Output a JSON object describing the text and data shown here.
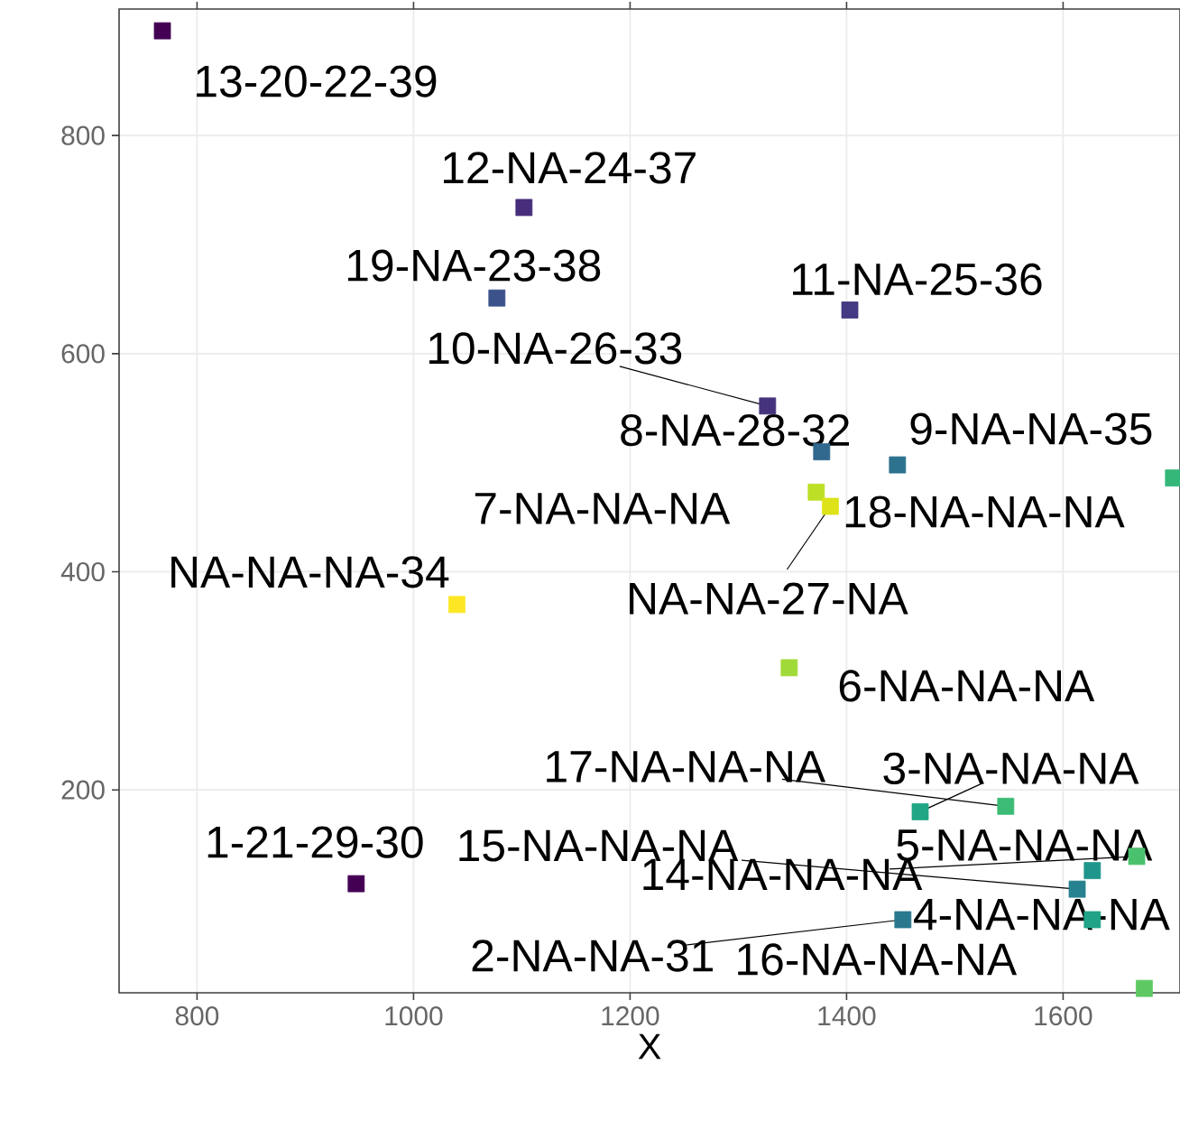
{
  "chart_data": {
    "type": "scatter",
    "xlabel": "X",
    "x": [
      768,
      1102,
      1077,
      1403,
      1327,
      1377,
      1447,
      1372,
      1385,
      1040,
      1347,
      1468,
      1547,
      1627,
      1613,
      1668,
      1627,
      1452,
      1675,
      1702,
      947
    ],
    "values": [
      896,
      734,
      651,
      640,
      552,
      510,
      498,
      473,
      460,
      370,
      312,
      180,
      185,
      126,
      109,
      139,
      81,
      81,
      18,
      486,
      114
    ],
    "colors": [
      "#440154",
      "#472d7b",
      "#3b528b",
      "#443983",
      "#46337e",
      "#31688e",
      "#2c728e",
      "#bddf26",
      "#dde318",
      "#fde725",
      "#a0da39",
      "#21a685",
      "#3bbb75",
      "#1f968b",
      "#26828e",
      "#4ac16d",
      "#20a386",
      "#2a788e",
      "#5ec962",
      "#35b779",
      "#440154"
    ],
    "marker": "square",
    "xlim": [
      728,
      1708
    ],
    "ylim": [
      14,
      916
    ],
    "xticks": [
      800,
      1000,
      1200,
      1400,
      1600
    ],
    "yticks": [
      200,
      400,
      600,
      800
    ],
    "grid": true,
    "annotations": [
      {
        "text": "13-20-22-39",
        "x": 768,
        "y": 896
      },
      {
        "text": "12-NA-24-37",
        "x": 1102,
        "y": 734
      },
      {
        "text": "19-NA-23-38",
        "x": 1077,
        "y": 651
      },
      {
        "text": "11-NA-25-36",
        "x": 1403,
        "y": 640
      },
      {
        "text": "10-NA-26-33",
        "x": 1327,
        "y": 552
      },
      {
        "text": "8-NA-28-32",
        "x": 1377,
        "y": 510
      },
      {
        "text": "9-NA-NA-35",
        "x": 1447,
        "y": 498
      },
      {
        "text": "7-NA-NA-NA",
        "x": 1372,
        "y": 473
      },
      {
        "text": "18-NA-NA-NA",
        "x": 1385,
        "y": 460
      },
      {
        "text": "NA-NA-27-NA",
        "x": 1385,
        "y": 460
      },
      {
        "text": "NA-NA-NA-34",
        "x": 1040,
        "y": 370
      },
      {
        "text": "6-NA-NA-NA",
        "x": 1347,
        "y": 312
      },
      {
        "text": "17-NA-NA-NA",
        "x": 1547,
        "y": 185
      },
      {
        "text": "3-NA-NA-NA",
        "x": 1468,
        "y": 180
      },
      {
        "text": "1-21-29-30",
        "x": 947,
        "y": 114
      },
      {
        "text": "15-NA-NA-NA",
        "x": 1613,
        "y": 109
      },
      {
        "text": "5-NA-NA-NA",
        "x": 1627,
        "y": 126
      },
      {
        "text": "14-NA-NA-NA",
        "x": 1668,
        "y": 139
      },
      {
        "text": "2-NA-NA-31",
        "x": 1452,
        "y": 81
      },
      {
        "text": "16-NA-NA-NA",
        "x": 1627,
        "y": 81
      },
      {
        "text": "4-NA-NA-NA",
        "x": 1675,
        "y": 18
      }
    ]
  }
}
